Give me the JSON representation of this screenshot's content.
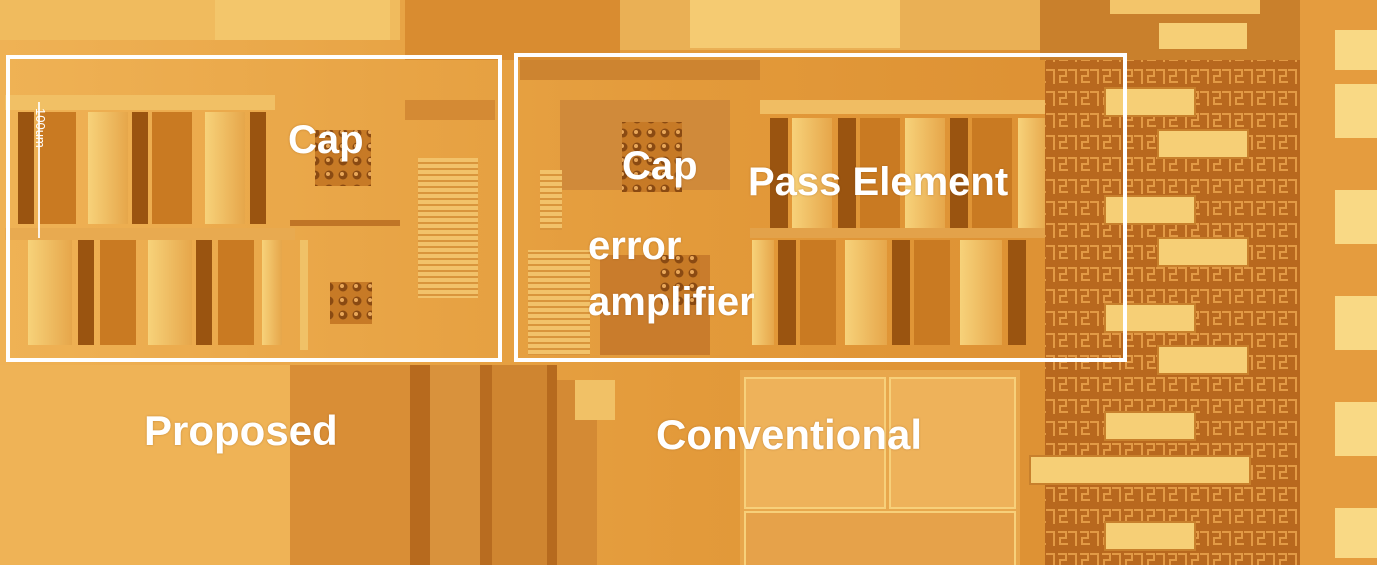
{
  "colors": {
    "substrate": "#e39a3a",
    "metal_light": "#f4c562",
    "metal_mid": "#e0a247",
    "trench_dark": "#9a5410",
    "border_white": "#ffffff",
    "label_white": "#ffffff"
  },
  "image": {
    "subject": "chip micrograph"
  },
  "labels": {
    "proposed_cap": "Cap",
    "conventional_cap": "Cap",
    "pass_element": "Pass Element",
    "error_amplifier_line1": "error",
    "error_amplifier_line2": "amplifier",
    "proposed": "Proposed",
    "conventional": "Conventional",
    "scale_bar": "100um"
  }
}
